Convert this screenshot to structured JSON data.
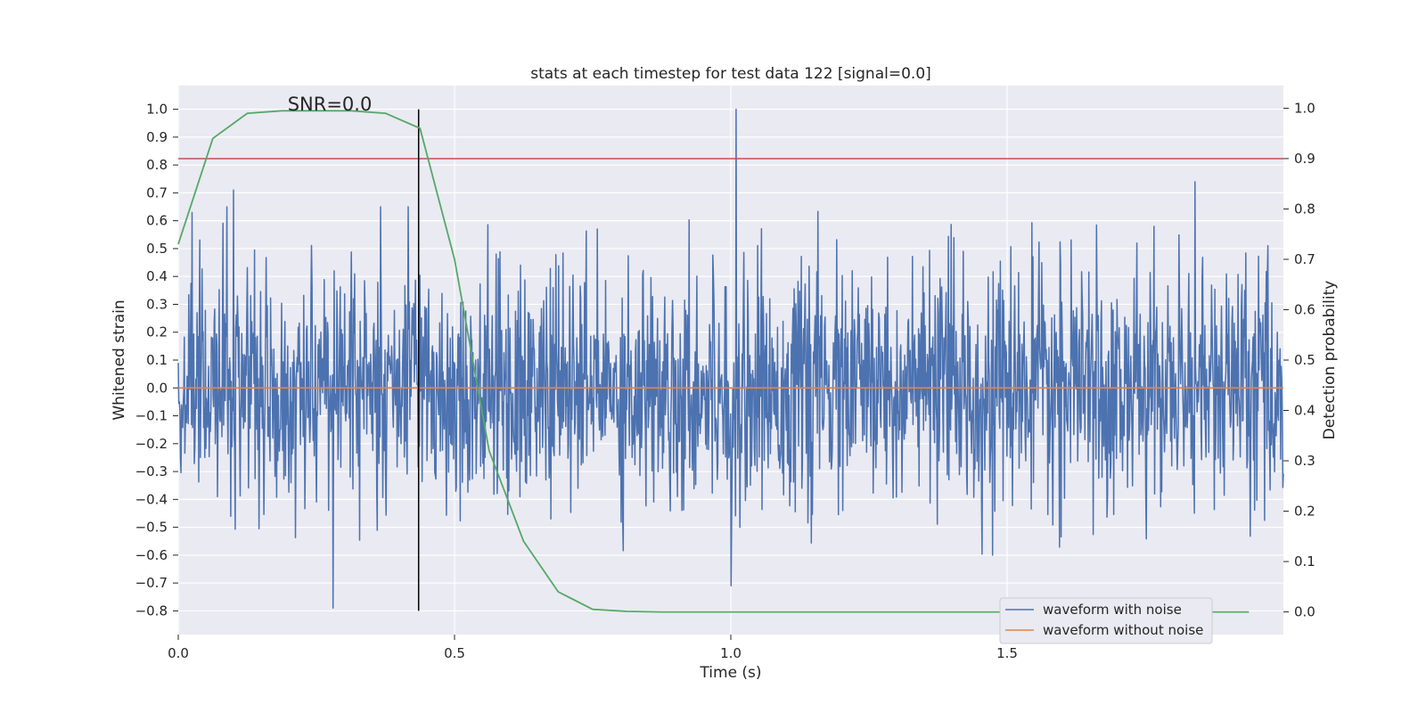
{
  "chart_data": {
    "type": "line",
    "title": "stats at each timestep for test data 122 [signal=0.0]",
    "xlabel": "Time (s)",
    "ylabel_left": "Whitened strain",
    "ylabel_right": "Detection probability",
    "xlim": [
      0.0,
      2.0
    ],
    "ylim_left": [
      -0.885,
      1.085
    ],
    "ylim_right": [
      -0.045,
      1.045
    ],
    "x_ticks": [
      0.0,
      0.5,
      1.0,
      1.5
    ],
    "x_tick_labels": [
      "0.0",
      "0.5",
      "1.0",
      "1.5"
    ],
    "y_left_ticks": [
      1.0,
      0.9,
      0.8,
      0.7,
      0.6,
      0.5,
      0.4,
      0.3,
      0.2,
      0.1,
      0.0,
      -0.1,
      -0.2,
      -0.3,
      -0.4,
      -0.5,
      -0.6,
      -0.7,
      -0.8
    ],
    "y_left_tick_labels": [
      "1.0",
      "0.9",
      "0.8",
      "0.7",
      "0.6",
      "0.5",
      "0.4",
      "0.3",
      "0.2",
      "0.1",
      "0.0",
      "−0.1",
      "−0.2",
      "−0.3",
      "−0.4",
      "−0.5",
      "−0.6",
      "−0.7",
      "−0.8"
    ],
    "y_right_ticks": [
      1.0,
      0.9,
      0.8,
      0.7,
      0.6,
      0.5,
      0.4,
      0.3,
      0.2,
      0.1,
      0.0
    ],
    "y_right_tick_labels": [
      "1.0",
      "0.9",
      "0.8",
      "0.7",
      "0.6",
      "0.5",
      "0.4",
      "0.3",
      "0.2",
      "0.1",
      "0.0"
    ],
    "grid": true,
    "legend_position": "bottom-right",
    "series": [
      {
        "name": "waveform with noise",
        "axis": "left",
        "color": "#4c72b0",
        "style": "dense noise",
        "x_range": [
          0.0,
          2.0
        ],
        "typical_range": [
          -0.5,
          0.6
        ],
        "notable_points": [
          {
            "x": 1.01,
            "y": 1.0
          },
          {
            "x": 1.84,
            "y": 0.74
          },
          {
            "x": 0.1,
            "y": 0.71
          },
          {
            "x": 0.28,
            "y": -0.79
          },
          {
            "x": 1.0,
            "y": -0.71
          }
        ]
      },
      {
        "name": "waveform without noise",
        "axis": "left",
        "color": "#dd8452",
        "x": [
          0.0,
          2.0
        ],
        "y": [
          0.0,
          0.0
        ]
      },
      {
        "name": "detection probability",
        "axis": "right",
        "color": "#55a868",
        "x": [
          0.0,
          0.0625,
          0.125,
          0.1875,
          0.25,
          0.3125,
          0.375,
          0.4375,
          0.5,
          0.5625,
          0.625,
          0.6875,
          0.75,
          0.8125,
          0.875,
          1.0,
          1.25,
          1.5,
          1.75,
          1.9375
        ],
        "y": [
          0.73,
          0.94,
          0.99,
          0.995,
          0.995,
          0.995,
          0.99,
          0.96,
          0.7,
          0.32,
          0.14,
          0.04,
          0.005,
          0.001,
          0.0,
          0.0,
          0.0,
          0.0,
          0.0,
          0.0
        ]
      }
    ],
    "reference_lines": [
      {
        "orientation": "horizontal",
        "axis": "right",
        "value": 0.9,
        "color": "#c44e52"
      },
      {
        "orientation": "vertical",
        "x": 0.435,
        "y_from": -0.8,
        "y_to": 1.0,
        "color": "#000000"
      }
    ],
    "annotations": [
      {
        "text": "SNR=0.0",
        "x": 0.28,
        "y": 1.0
      }
    ]
  }
}
